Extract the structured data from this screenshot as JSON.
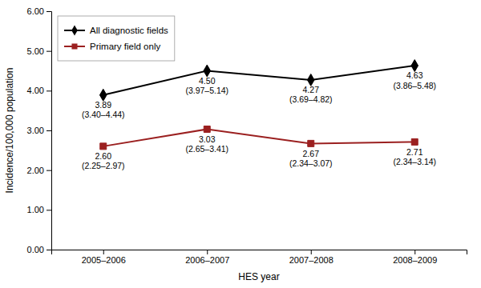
{
  "chart_data": {
    "type": "line",
    "categories": [
      "2005–2006",
      "2006–2007",
      "2007–2008",
      "2008–2009"
    ],
    "series": [
      {
        "name": "All diagnostic fields",
        "color": "#000000",
        "marker": "diamond",
        "values": [
          3.89,
          4.5,
          4.27,
          4.63
        ],
        "value_labels": [
          "3.89\n(3.40–4.44)",
          "4.50\n(3.97–5.14)",
          "4.27\n(3.69–4.82)",
          "4.63\n(3.86–5.48)"
        ]
      },
      {
        "name": "Primary field only",
        "color": "#9B2020",
        "marker": "square",
        "values": [
          2.6,
          3.03,
          2.67,
          2.71
        ],
        "value_labels": [
          "2.60\n(2.25–2.97)",
          "3.03\n(2.65–3.41)",
          "2.67\n(2.34–3.07)",
          "2.71\n(2.34–3.14)"
        ]
      }
    ],
    "xlabel": "HES year",
    "ylabel": "Incidence/100,000 population",
    "ylim": [
      0.0,
      6.0
    ],
    "yticks": [
      {
        "value": 0.0,
        "label": "0.00"
      },
      {
        "value": 1.0,
        "label": "1.00"
      },
      {
        "value": 2.0,
        "label": "2.00"
      },
      {
        "value": 3.0,
        "label": "3.00"
      },
      {
        "value": 4.0,
        "label": "4.00"
      },
      {
        "value": 5.0,
        "label": "5.00"
      },
      {
        "value": 6.0,
        "label": "6.00"
      }
    ],
    "legend": "upper-left",
    "data_labels": true
  }
}
